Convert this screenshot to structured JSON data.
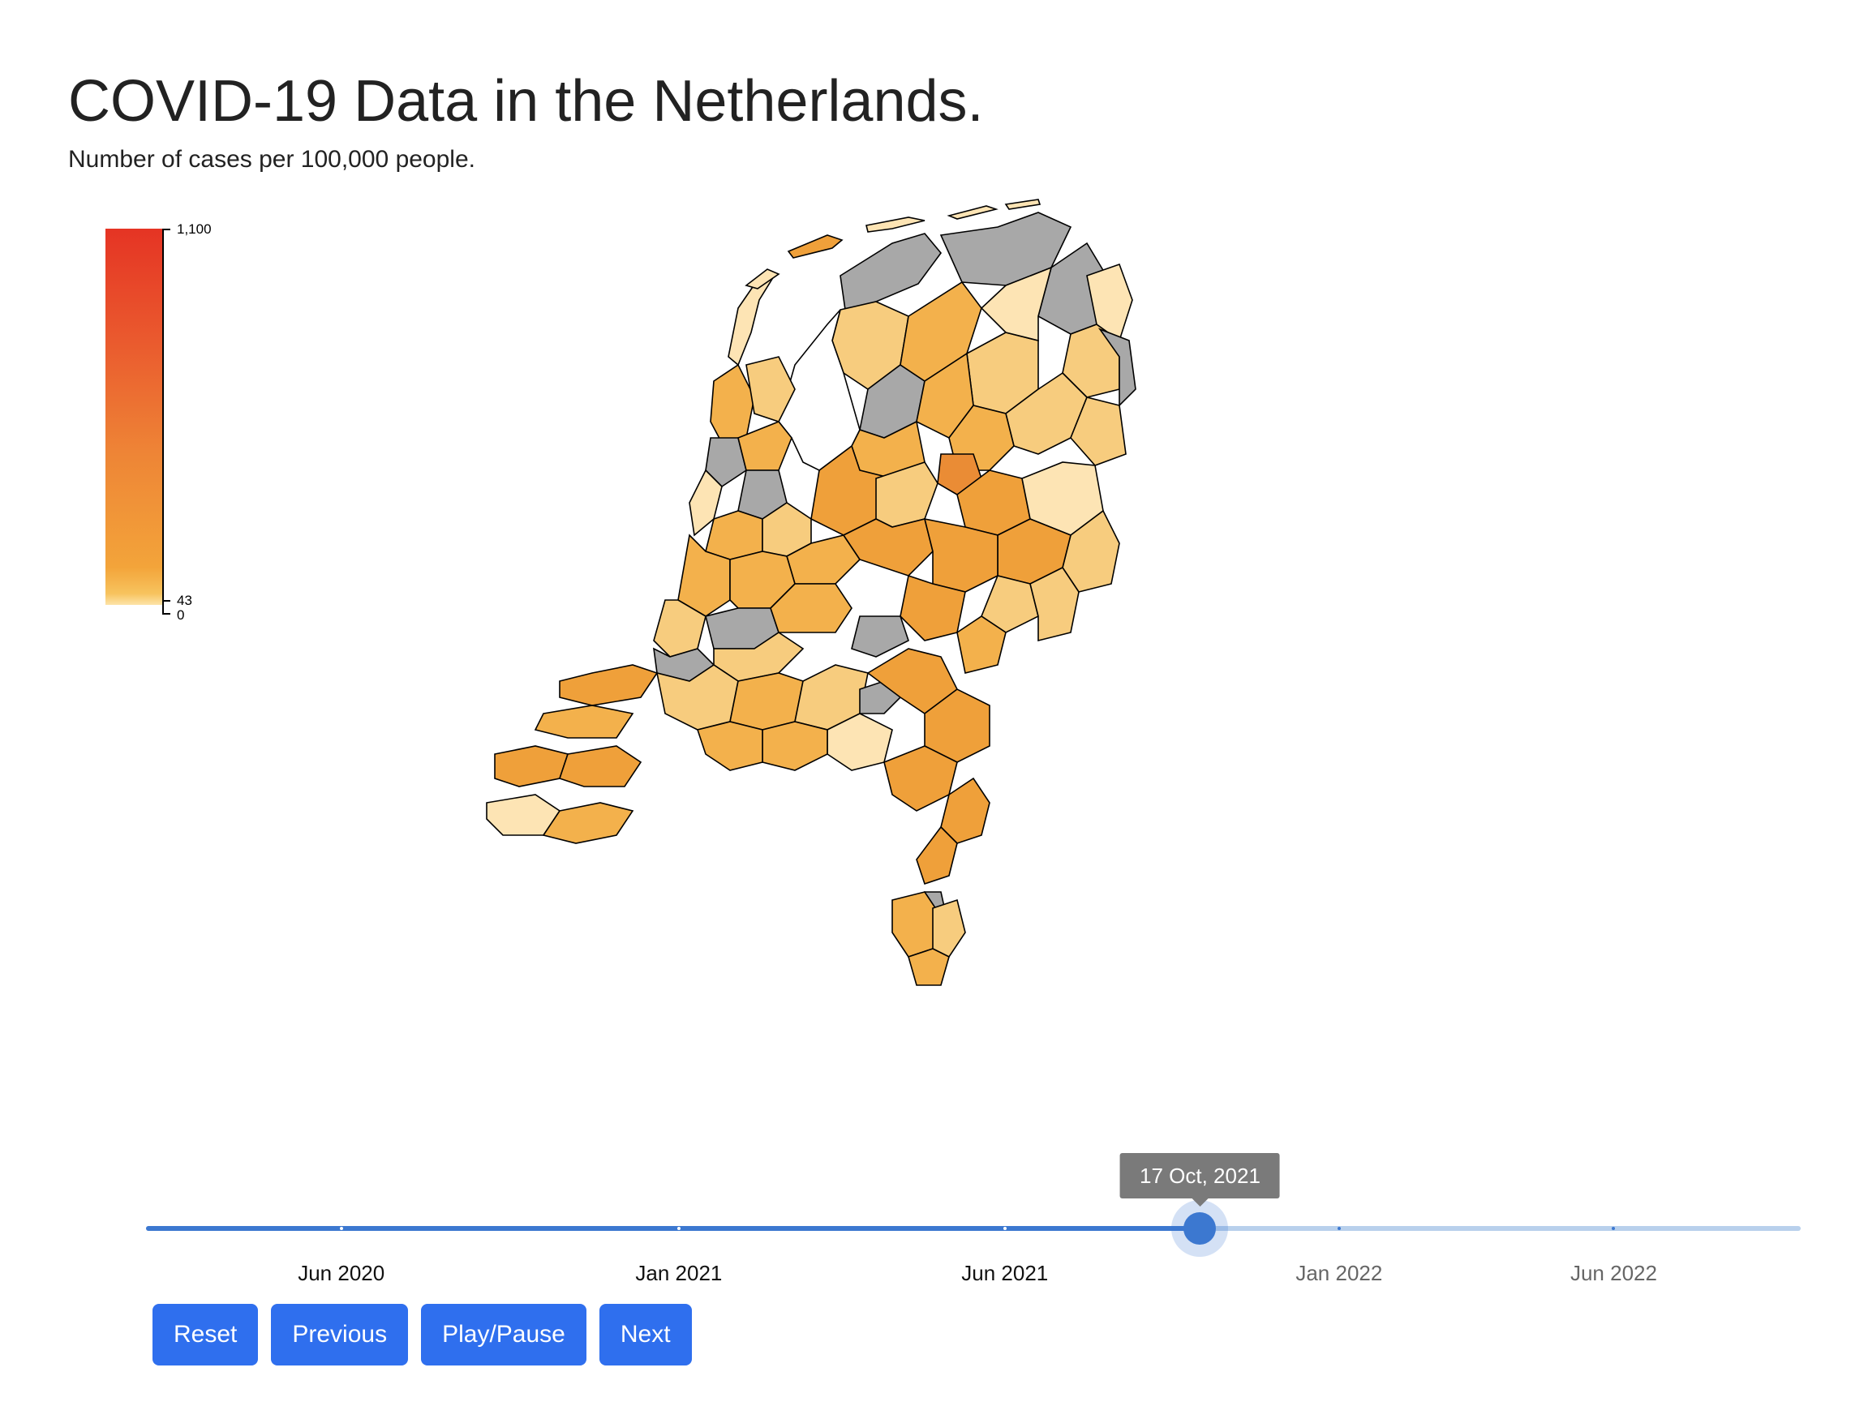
{
  "header": {
    "title": "COVID-19 Data in the Netherlands.",
    "subtitle": "Number of cases per 100,000 people."
  },
  "legend": {
    "labels": [
      "1,100",
      "43",
      "0"
    ],
    "values": [
      1100,
      43,
      0
    ],
    "colors": {
      "max": "#e53424",
      "mid": "#ee8536",
      "low": "#f3a43a",
      "min": "#fde4a8"
    }
  },
  "map": {
    "colors": {
      "no_data": "#a8a8a8",
      "pale": "#fde4b4",
      "light": "#f7cc7e",
      "medium": "#f3b14c",
      "dark": "#efa03a",
      "darkest": "#ea8c35"
    }
  },
  "slider": {
    "current_date": "17 Oct, 2021",
    "position_fraction": 0.637,
    "ticks": [
      {
        "label": "Jun 2020",
        "fraction": 0.118,
        "passed": true
      },
      {
        "label": "Jan 2021",
        "fraction": 0.322,
        "passed": true
      },
      {
        "label": "Jun 2021",
        "fraction": 0.519,
        "passed": true
      },
      {
        "label": "Jan 2022",
        "fraction": 0.721,
        "passed": false
      },
      {
        "label": "Jun 2022",
        "fraction": 0.887,
        "passed": false
      }
    ],
    "colors": {
      "active": "#3c78d0",
      "inactive": "#b8d0ec"
    }
  },
  "controls": {
    "reset": "Reset",
    "previous": "Previous",
    "play_pause": "Play/Pause",
    "next": "Next"
  }
}
